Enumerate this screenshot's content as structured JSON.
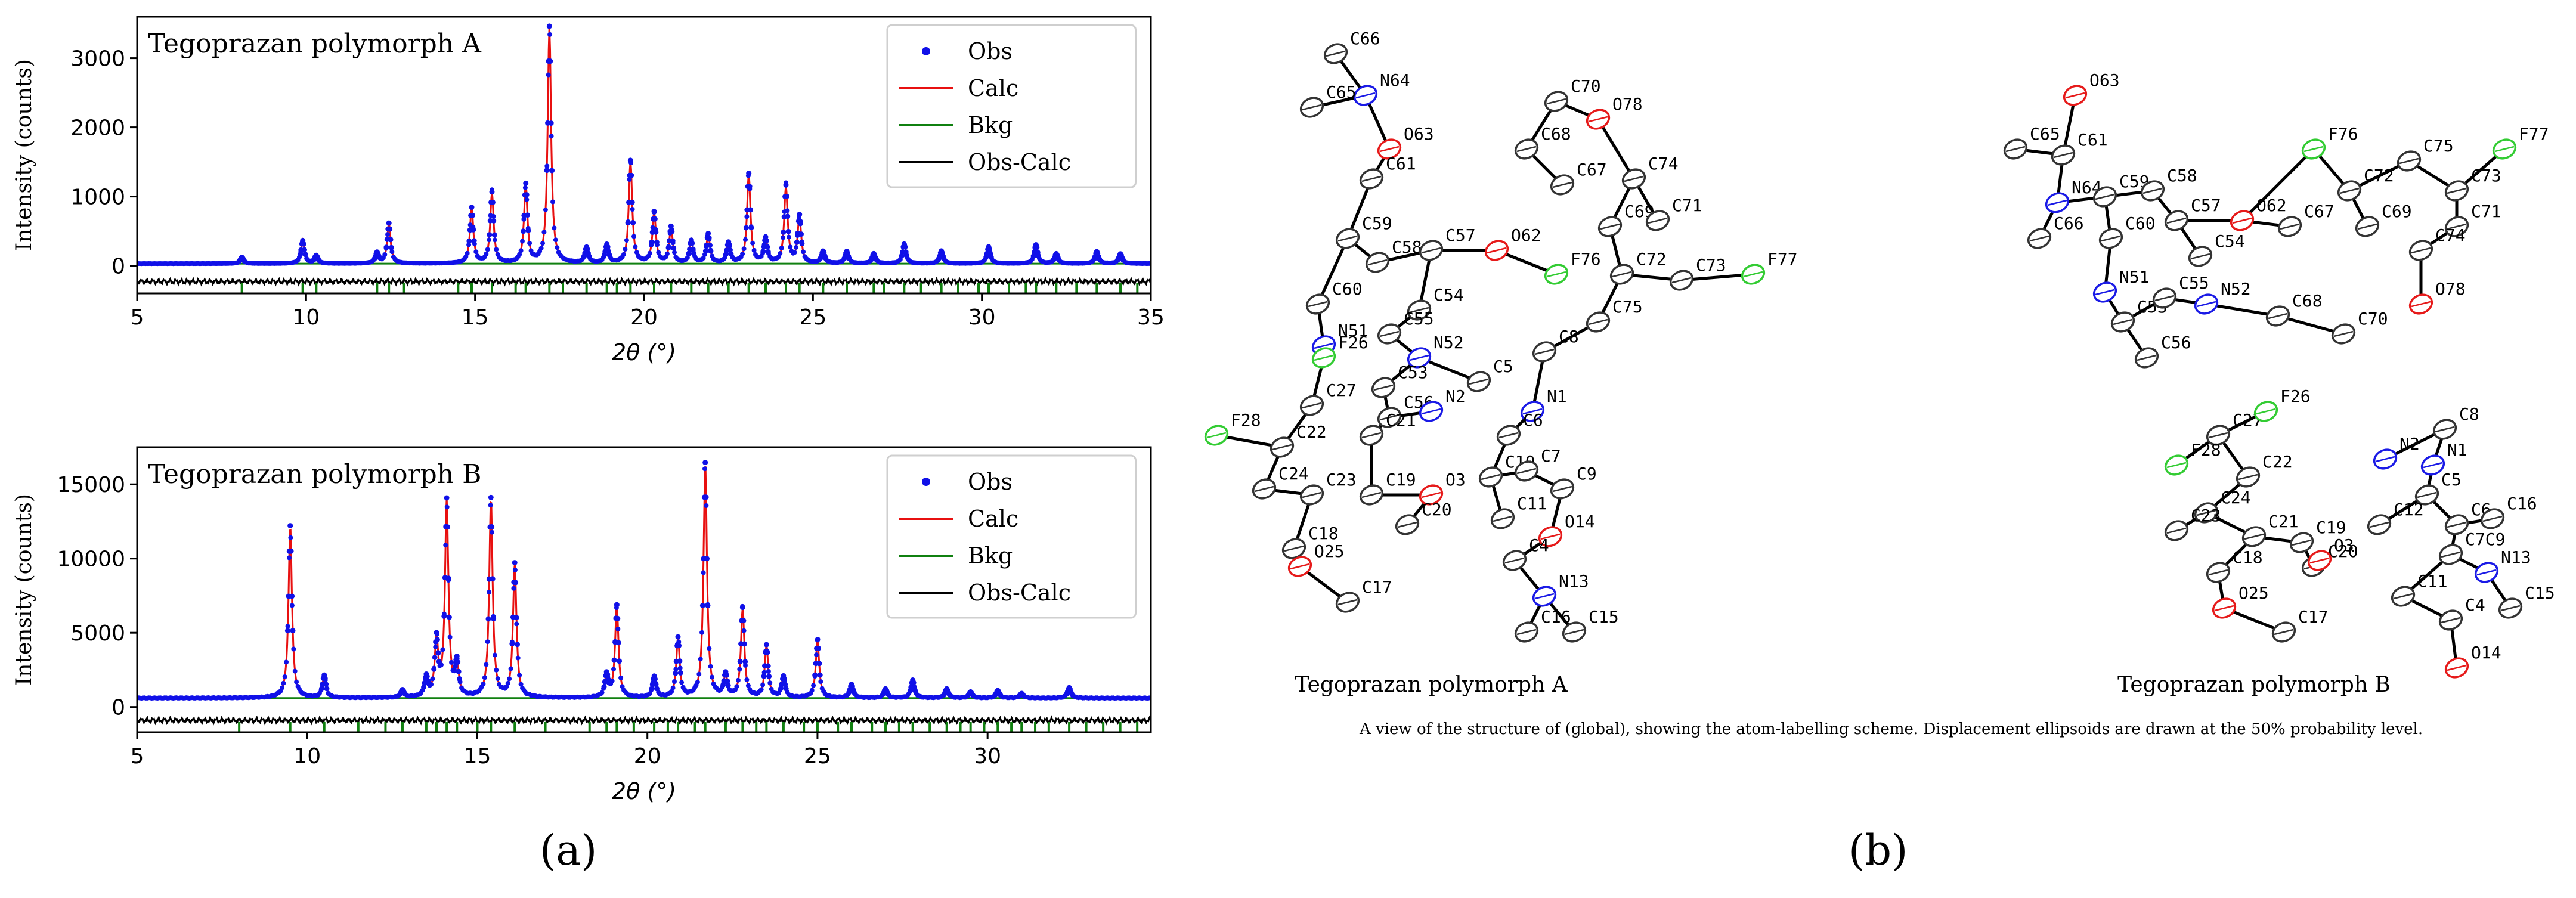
{
  "panel_labels": {
    "a": "(a)",
    "b": "(b)"
  },
  "chart_data": [
    {
      "type": "line",
      "title": "Tegoprazan polymorph A",
      "xlabel": "2θ (°)",
      "ylabel": "Intensity (counts)",
      "xlim": [
        5,
        35
      ],
      "ylim": [
        -400,
        3600
      ],
      "xticks": [
        5,
        10,
        15,
        20,
        25,
        30,
        35
      ],
      "yticks": [
        0,
        1000,
        2000,
        3000
      ],
      "grid": false,
      "legend_position": "top-right",
      "background": 30,
      "diff_offset": -230,
      "peaks": [
        [
          8.1,
          90
        ],
        [
          9.9,
          330
        ],
        [
          10.3,
          110
        ],
        [
          12.1,
          150
        ],
        [
          12.45,
          580
        ],
        [
          14.9,
          800
        ],
        [
          15.5,
          1020
        ],
        [
          16.5,
          1130
        ],
        [
          17.2,
          3420
        ],
        [
          18.3,
          220
        ],
        [
          18.9,
          260
        ],
        [
          19.6,
          1480
        ],
        [
          20.3,
          730
        ],
        [
          20.8,
          520
        ],
        [
          21.4,
          320
        ],
        [
          21.9,
          420
        ],
        [
          22.5,
          290
        ],
        [
          23.1,
          1290
        ],
        [
          23.6,
          350
        ],
        [
          24.2,
          1110
        ],
        [
          24.6,
          680
        ],
        [
          25.3,
          170
        ],
        [
          26.0,
          170
        ],
        [
          26.8,
          140
        ],
        [
          27.7,
          280
        ],
        [
          28.8,
          180
        ],
        [
          30.2,
          240
        ],
        [
          31.6,
          270
        ],
        [
          32.2,
          140
        ],
        [
          33.4,
          170
        ],
        [
          34.1,
          140
        ]
      ],
      "tick_rows": [
        8.1,
        9.9,
        10.3,
        12.1,
        12.45,
        12.9,
        14.5,
        14.9,
        15.5,
        16.2,
        16.5,
        17.2,
        17.6,
        18.3,
        18.9,
        19.2,
        19.6,
        20.3,
        20.8,
        21.4,
        21.9,
        22.5,
        23.1,
        23.6,
        24.2,
        24.6,
        25.3,
        26.0,
        26.8,
        27.1,
        27.7,
        28.2,
        28.8,
        29.3,
        29.9,
        30.2,
        30.8,
        31.3,
        31.6,
        32.2,
        32.8,
        33.4,
        34.1,
        34.6
      ],
      "series": [
        {
          "name": "Obs",
          "color": "#1010e8",
          "style": "points"
        },
        {
          "name": "Calc",
          "color": "#e81010",
          "style": "line"
        },
        {
          "name": "Bkg",
          "color": "#108010",
          "style": "line"
        },
        {
          "name": "Obs-Calc",
          "color": "#000000",
          "style": "line"
        }
      ]
    },
    {
      "type": "line",
      "title": "Tegoprazan polymorph B",
      "xlabel": "2θ (°)",
      "ylabel": "Intensity (counts)",
      "xlim": [
        5,
        34.8
      ],
      "ylim": [
        -1700,
        17500
      ],
      "xticks": [
        5,
        10,
        15,
        20,
        25,
        30
      ],
      "yticks": [
        0,
        5000,
        10000,
        15000
      ],
      "grid": false,
      "legend_position": "top-right",
      "background": 600,
      "diff_offset": -900,
      "peaks": [
        [
          9.5,
          11600
        ],
        [
          10.5,
          1500
        ],
        [
          12.8,
          500
        ],
        [
          13.5,
          1300
        ],
        [
          13.8,
          3800
        ],
        [
          14.1,
          13200
        ],
        [
          14.4,
          2200
        ],
        [
          15.4,
          13400
        ],
        [
          16.1,
          9000
        ],
        [
          18.8,
          1500
        ],
        [
          19.1,
          6200
        ],
        [
          20.2,
          1400
        ],
        [
          20.9,
          4000
        ],
        [
          21.7,
          15800
        ],
        [
          22.3,
          1500
        ],
        [
          22.8,
          6000
        ],
        [
          23.5,
          3500
        ],
        [
          24.0,
          1400
        ],
        [
          25.0,
          3900
        ],
        [
          26.0,
          900
        ],
        [
          27.0,
          600
        ],
        [
          27.8,
          1200
        ],
        [
          28.8,
          600
        ],
        [
          29.5,
          400
        ],
        [
          30.3,
          500
        ],
        [
          31.0,
          300
        ],
        [
          32.4,
          700
        ]
      ],
      "tick_rows": [
        8.0,
        9.5,
        10.5,
        11.5,
        12.3,
        12.8,
        13.5,
        13.8,
        14.1,
        14.4,
        15.0,
        15.4,
        16.1,
        17.0,
        18.3,
        18.8,
        19.1,
        19.6,
        20.2,
        20.6,
        20.9,
        21.4,
        21.7,
        22.3,
        22.8,
        23.2,
        23.5,
        24.0,
        24.6,
        25.0,
        25.6,
        26.0,
        26.6,
        27.0,
        27.4,
        27.8,
        28.3,
        28.8,
        29.2,
        29.5,
        29.9,
        30.3,
        30.7,
        31.0,
        31.4,
        31.8,
        32.4,
        32.9,
        33.4,
        33.9,
        34.4
      ],
      "series": [
        {
          "name": "Obs",
          "color": "#1010e8",
          "style": "points"
        },
        {
          "name": "Calc",
          "color": "#e81010",
          "style": "line"
        },
        {
          "name": "Bkg",
          "color": "#108010",
          "style": "line"
        },
        {
          "name": "Obs-Calc",
          "color": "#000000",
          "style": "line"
        }
      ]
    }
  ],
  "diagram_b": {
    "colors": {
      "C": "#333333",
      "N": "#1a1ae6",
      "O": "#e61a1a",
      "F": "#33cc33",
      "H": "#333333"
    },
    "structure_A": {
      "label": "Tegoprazan polymorph A",
      "atoms": [
        [
          "C66",
          "C"
        ],
        [
          "N64",
          "N"
        ],
        [
          "C65",
          "C"
        ],
        [
          "O63",
          "O"
        ],
        [
          "C61",
          "C"
        ],
        [
          "C59",
          "C"
        ],
        [
          "C58",
          "C"
        ],
        [
          "C57",
          "C"
        ],
        [
          "O62",
          "O"
        ],
        [
          "C60",
          "C"
        ],
        [
          "C54",
          "C"
        ],
        [
          "N51",
          "N"
        ],
        [
          "C55",
          "C"
        ],
        [
          "N52",
          "N"
        ],
        [
          "F26",
          "F"
        ],
        [
          "C53",
          "C"
        ],
        [
          "C56",
          "C"
        ],
        [
          "C27",
          "C"
        ],
        [
          "C22",
          "C"
        ],
        [
          "C21",
          "C"
        ],
        [
          "F28",
          "F"
        ],
        [
          "C24",
          "C"
        ],
        [
          "C23",
          "C"
        ],
        [
          "C18",
          "C"
        ],
        [
          "C19",
          "C"
        ],
        [
          "O3",
          "O"
        ],
        [
          "C20",
          "C"
        ],
        [
          "O25",
          "O"
        ],
        [
          "C17",
          "C"
        ],
        [
          "C70",
          "C"
        ],
        [
          "O78",
          "O"
        ],
        [
          "C68",
          "C"
        ],
        [
          "C67",
          "C"
        ],
        [
          "C74",
          "C"
        ],
        [
          "C69",
          "C"
        ],
        [
          "C71",
          "C"
        ],
        [
          "C72",
          "C"
        ],
        [
          "C73",
          "C"
        ],
        [
          "F77",
          "F"
        ],
        [
          "F76",
          "F"
        ],
        [
          "C75",
          "C"
        ],
        [
          "C8",
          "C"
        ],
        [
          "C5",
          "C"
        ],
        [
          "N2",
          "N"
        ],
        [
          "N1",
          "N"
        ],
        [
          "C6",
          "C"
        ],
        [
          "C10",
          "C"
        ],
        [
          "C7",
          "C"
        ],
        [
          "C9",
          "C"
        ],
        [
          "C11",
          "C"
        ],
        [
          "O14",
          "O"
        ],
        [
          "C4",
          "C"
        ],
        [
          "N13",
          "N"
        ],
        [
          "C16",
          "C"
        ],
        [
          "C15",
          "C"
        ]
      ]
    },
    "structure_B": {
      "label": "Tegoprazan polymorph B",
      "atoms": [
        [
          "O63",
          "O"
        ],
        [
          "C61",
          "C"
        ],
        [
          "C65",
          "C"
        ],
        [
          "N64",
          "N"
        ],
        [
          "C59",
          "C"
        ],
        [
          "C58",
          "C"
        ],
        [
          "C66",
          "C"
        ],
        [
          "C60",
          "C"
        ],
        [
          "C57",
          "C"
        ],
        [
          "O62",
          "O"
        ],
        [
          "C54",
          "C"
        ],
        [
          "N51",
          "N"
        ],
        [
          "C53",
          "C"
        ],
        [
          "C55",
          "C"
        ],
        [
          "N52",
          "N"
        ],
        [
          "C56",
          "C"
        ],
        [
          "F76",
          "F"
        ],
        [
          "C72",
          "C"
        ],
        [
          "C75",
          "C"
        ],
        [
          "C73",
          "C"
        ],
        [
          "F77",
          "F"
        ],
        [
          "C69",
          "C"
        ],
        [
          "C71",
          "C"
        ],
        [
          "C74",
          "C"
        ],
        [
          "C67",
          "C"
        ],
        [
          "O78",
          "O"
        ],
        [
          "C68",
          "C"
        ],
        [
          "C70",
          "C"
        ],
        [
          "C27",
          "C"
        ],
        [
          "F26",
          "F"
        ],
        [
          "F28",
          "F"
        ],
        [
          "C22",
          "C"
        ],
        [
          "C24",
          "C"
        ],
        [
          "C23",
          "C"
        ],
        [
          "C21",
          "C"
        ],
        [
          "C19",
          "C"
        ],
        [
          "C18",
          "C"
        ],
        [
          "C20",
          "C"
        ],
        [
          "O3",
          "O"
        ],
        [
          "O25",
          "O"
        ],
        [
          "C17",
          "C"
        ],
        [
          "N2",
          "N"
        ],
        [
          "C8",
          "C"
        ],
        [
          "N1",
          "N"
        ],
        [
          "C5",
          "C"
        ],
        [
          "C12",
          "C"
        ],
        [
          "C6",
          "C"
        ],
        [
          "C16",
          "C"
        ],
        [
          "C7C9",
          "C"
        ],
        [
          "N13",
          "N"
        ],
        [
          "C11",
          "C"
        ],
        [
          "C4",
          "C"
        ],
        [
          "C15",
          "C"
        ],
        [
          "O14",
          "O"
        ]
      ]
    },
    "caption": "A view of the structure of (global), showing the atom-labelling scheme. Displacement ellipsoids are drawn at the 50% probability level."
  }
}
